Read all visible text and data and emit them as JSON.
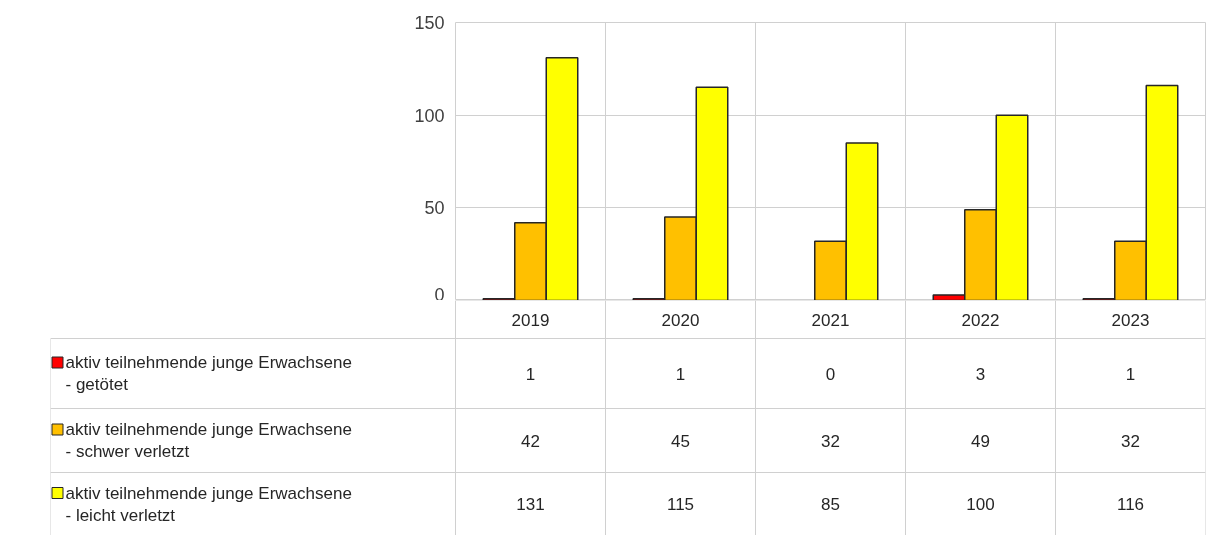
{
  "chart_data": {
    "type": "bar",
    "categories": [
      "2019",
      "2020",
      "2021",
      "2022",
      "2023"
    ],
    "series": [
      {
        "name": "aktiv teilnehmende junge Erwachsene - getötet",
        "color": "#ff0000",
        "values": [
          1,
          1,
          0,
          3,
          1
        ]
      },
      {
        "name": "aktiv teilnehmende junge Erwachsene - schwer verletzt",
        "color": "#ffc000",
        "values": [
          42,
          45,
          32,
          49,
          32
        ]
      },
      {
        "name": "aktiv teilnehmende junge Erwachsene - leicht verletzt",
        "color": "#ffff00",
        "values": [
          131,
          115,
          85,
          100,
          116
        ]
      }
    ],
    "ylim": [
      0,
      150
    ],
    "yticks": [
      0,
      50,
      100,
      150
    ],
    "grid": true,
    "legend": "bottom",
    "data_labels": true
  }
}
